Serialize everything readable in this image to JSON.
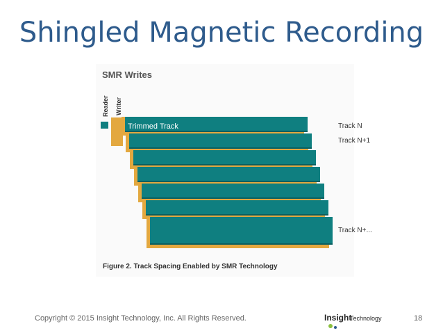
{
  "slide": {
    "title": "Shingled Magnetic Recording",
    "figure": {
      "heading": "SMR Writes",
      "reader": "Reader",
      "writer": "Writer",
      "trimmed": "Trimmed Track",
      "track_labels": [
        "Track N",
        "Track N+1",
        "Track N+..."
      ],
      "caption": "Figure 2. Track Spacing Enabled by SMR Technology"
    },
    "footer": {
      "copyright": "Copyright © 2015 Insight Technology, Inc. All Rights Reserved.",
      "logo_main": "Insight",
      "logo_sub": "Technology",
      "page": "18"
    }
  }
}
